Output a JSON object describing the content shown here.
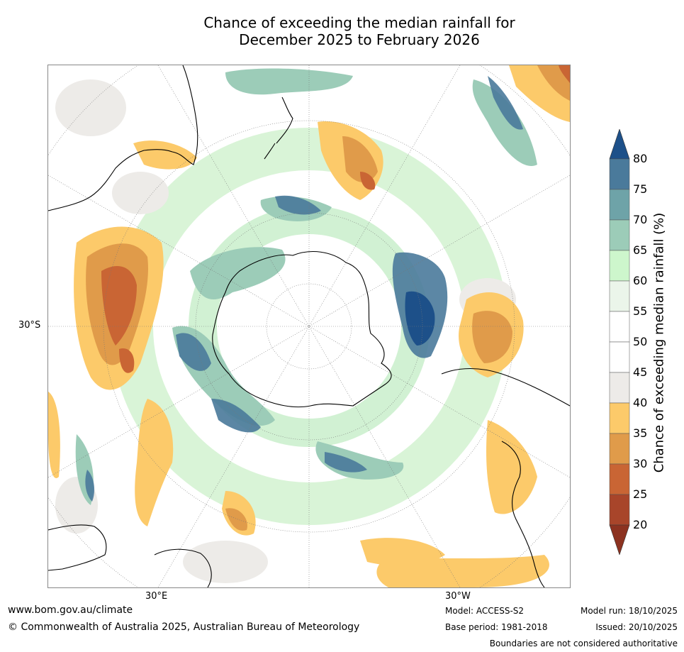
{
  "title_line1": "Chance of exceeding the median rainfall for",
  "title_line2": "December 2025 to February 2026",
  "map": {
    "lat_label": "30°S",
    "lon_label_left": "30°E",
    "lon_label_right": "30°W"
  },
  "colorbar": {
    "title": "Chance of exceeding median rainfall (%)",
    "ticks": [
      "80",
      "75",
      "70",
      "65",
      "60",
      "55",
      "50",
      "45",
      "40",
      "35",
      "30",
      "25",
      "20"
    ],
    "colors": [
      "#4a7a9b",
      "#6ea3a8",
      "#9cccb8",
      "#cdf6cc",
      "#ebf5ea",
      "#ffffff",
      "#ffffff",
      "#edebe8",
      "#fcca6a",
      "#e09b4a",
      "#c96534",
      "#a8452a"
    ],
    "arrow_top": "#1d5089",
    "arrow_bottom": "#8c3220"
  },
  "footer": {
    "url": "www.bom.gov.au/climate",
    "copyright": "© Commonwealth of Australia 2025, Australian Bureau of Meteorology",
    "model": "Model: ACCESS-S2",
    "base_period": "Base period: 1981-2018",
    "model_run": "Model run: 18/10/2025",
    "issued": "Issued: 20/10/2025",
    "boundaries": "Boundaries are not considered authoritative"
  }
}
